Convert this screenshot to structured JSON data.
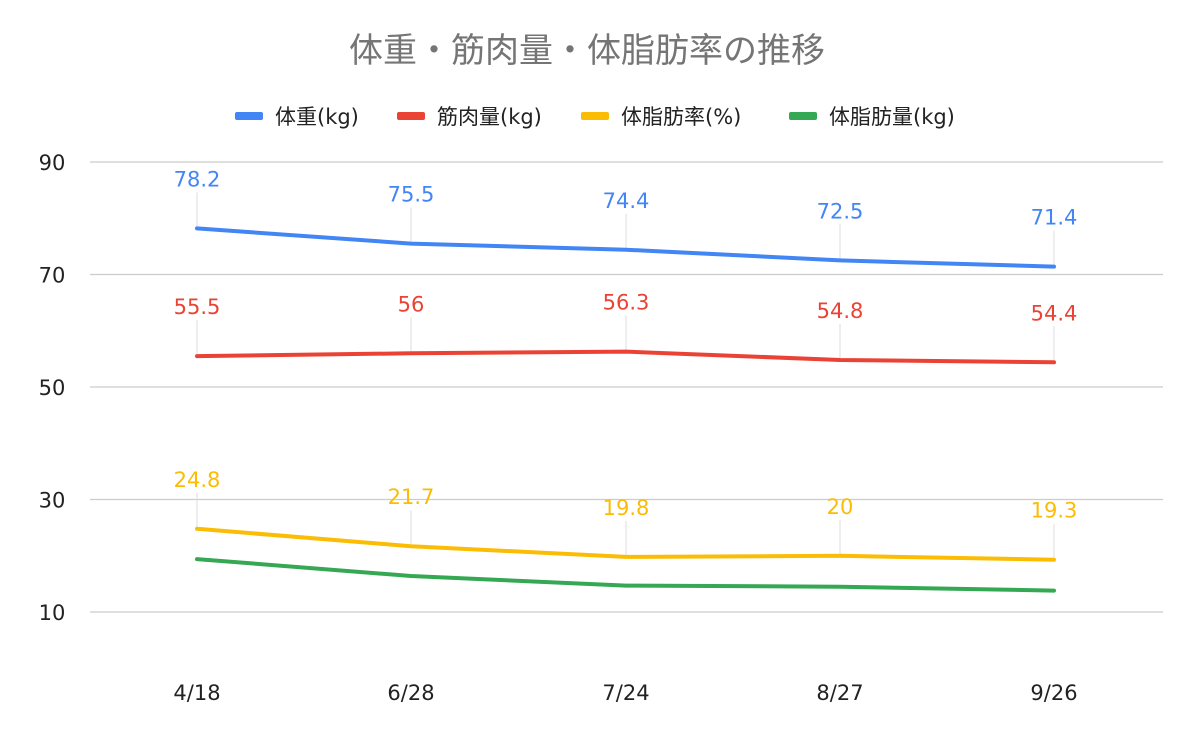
{
  "chart_data": {
    "type": "line",
    "title": "体重・筋肉量・体脂肪率の推移",
    "categories": [
      "4/18",
      "6/28",
      "7/24",
      "8/27",
      "9/26"
    ],
    "ylim": [
      0,
      90
    ],
    "yticks": [
      10,
      30,
      50,
      70,
      90
    ],
    "grid": true,
    "legend_position": "top",
    "series": [
      {
        "name": "体重(kg)",
        "color": "#4285f4",
        "values": [
          78.2,
          75.5,
          74.4,
          72.5,
          71.4
        ],
        "labels": [
          "78.2",
          "75.5",
          "74.4",
          "72.5",
          "71.4"
        ]
      },
      {
        "name": "筋肉量(kg)",
        "color": "#ea4335",
        "values": [
          55.5,
          56,
          56.3,
          54.8,
          54.4
        ],
        "labels": [
          "55.5",
          "56",
          "56.3",
          "54.8",
          "54.4"
        ]
      },
      {
        "name": "体脂肪率(%)",
        "color": "#fbbc04",
        "values": [
          24.8,
          21.7,
          19.8,
          20,
          19.3
        ],
        "labels": [
          "24.8",
          "21.7",
          "19.8",
          "20",
          "19.3"
        ]
      },
      {
        "name": "体脂肪量(kg)",
        "color": "#34a853",
        "values": [
          19.4,
          16.4,
          14.7,
          14.5,
          13.8
        ],
        "labels": []
      }
    ]
  }
}
